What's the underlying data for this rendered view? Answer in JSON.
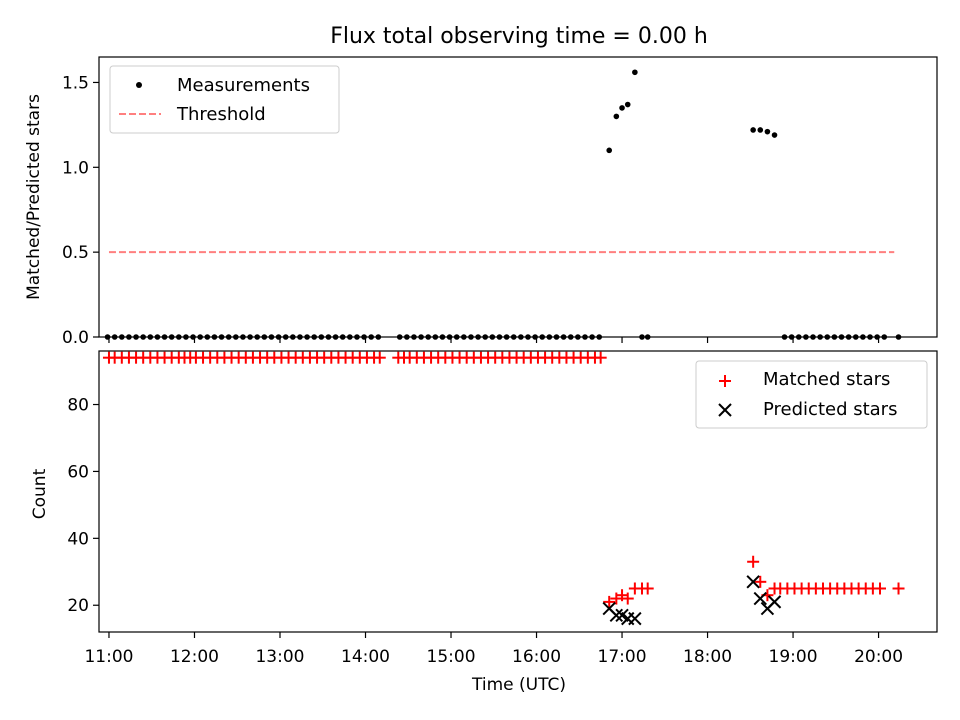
{
  "chart_data": [
    {
      "type": "scatter",
      "title": "Flux total observing time = 0.00 h",
      "xlabel": "",
      "ylabel": "Matched/Predicted stars",
      "xlim": [
        "10:53",
        "20:41"
      ],
      "ylim": [
        0,
        1.65
      ],
      "yticks": [
        0.0,
        0.5,
        1.0,
        1.5
      ],
      "ytick_labels": [
        "0.0",
        "0.5",
        "1.0",
        "1.5"
      ],
      "legend_position": "top-left",
      "series": [
        {
          "name": "Measurements",
          "marker": "dot",
          "color": "#000000",
          "points": [
            [
              "10:59",
              0
            ],
            [
              "11:04",
              0
            ],
            [
              "11:09",
              0
            ],
            [
              "11:14",
              0
            ],
            [
              "11:19",
              0
            ],
            [
              "11:24",
              0
            ],
            [
              "11:29",
              0
            ],
            [
              "11:34",
              0
            ],
            [
              "11:39",
              0
            ],
            [
              "11:44",
              0
            ],
            [
              "11:49",
              0
            ],
            [
              "11:54",
              0
            ],
            [
              "11:59",
              0
            ],
            [
              "12:04",
              0
            ],
            [
              "12:09",
              0
            ],
            [
              "12:14",
              0
            ],
            [
              "12:19",
              0
            ],
            [
              "12:24",
              0
            ],
            [
              "12:29",
              0
            ],
            [
              "12:34",
              0
            ],
            [
              "12:39",
              0
            ],
            [
              "12:44",
              0
            ],
            [
              "12:49",
              0
            ],
            [
              "12:54",
              0
            ],
            [
              "12:59",
              0
            ],
            [
              "13:04",
              0
            ],
            [
              "13:09",
              0
            ],
            [
              "13:14",
              0
            ],
            [
              "13:19",
              0
            ],
            [
              "13:24",
              0
            ],
            [
              "13:29",
              0
            ],
            [
              "13:34",
              0
            ],
            [
              "13:39",
              0
            ],
            [
              "13:44",
              0
            ],
            [
              "13:49",
              0
            ],
            [
              "13:54",
              0
            ],
            [
              "13:59",
              0
            ],
            [
              "14:04",
              0
            ],
            [
              "14:09",
              0
            ],
            [
              "14:24",
              0
            ],
            [
              "14:29",
              0
            ],
            [
              "14:34",
              0
            ],
            [
              "14:39",
              0
            ],
            [
              "14:44",
              0
            ],
            [
              "14:49",
              0
            ],
            [
              "14:54",
              0
            ],
            [
              "14:59",
              0
            ],
            [
              "15:04",
              0
            ],
            [
              "15:09",
              0
            ],
            [
              "15:14",
              0
            ],
            [
              "15:19",
              0
            ],
            [
              "15:24",
              0
            ],
            [
              "15:29",
              0
            ],
            [
              "15:34",
              0
            ],
            [
              "15:39",
              0
            ],
            [
              "15:44",
              0
            ],
            [
              "15:49",
              0
            ],
            [
              "15:54",
              0
            ],
            [
              "15:59",
              0
            ],
            [
              "16:04",
              0
            ],
            [
              "16:09",
              0
            ],
            [
              "16:14",
              0
            ],
            [
              "16:19",
              0
            ],
            [
              "16:24",
              0
            ],
            [
              "16:29",
              0
            ],
            [
              "16:34",
              0
            ],
            [
              "16:39",
              0
            ],
            [
              "16:44",
              0
            ],
            [
              "16:51",
              1.1
            ],
            [
              "16:56",
              1.3
            ],
            [
              "17:00",
              1.35
            ],
            [
              "17:04",
              1.37
            ],
            [
              "17:09",
              1.56
            ],
            [
              "17:14",
              0
            ],
            [
              "17:18",
              0
            ],
            [
              "18:32",
              1.22
            ],
            [
              "18:37",
              1.22
            ],
            [
              "18:42",
              1.21
            ],
            [
              "18:47",
              1.19
            ],
            [
              "18:54",
              0
            ],
            [
              "18:59",
              0
            ],
            [
              "19:04",
              0
            ],
            [
              "19:09",
              0
            ],
            [
              "19:14",
              0
            ],
            [
              "19:19",
              0
            ],
            [
              "19:24",
              0
            ],
            [
              "19:29",
              0
            ],
            [
              "19:34",
              0
            ],
            [
              "19:39",
              0
            ],
            [
              "19:44",
              0
            ],
            [
              "19:49",
              0
            ],
            [
              "19:54",
              0
            ],
            [
              "19:59",
              0
            ],
            [
              "20:04",
              0
            ],
            [
              "20:14",
              0
            ]
          ]
        },
        {
          "name": "Threshold",
          "marker": "dashed-line",
          "color": "#ff7f7f",
          "points": [
            [
              "11:00",
              0.5
            ],
            [
              "20:11",
              0.5
            ]
          ]
        }
      ]
    },
    {
      "type": "scatter",
      "title": "",
      "xlabel": "Time (UTC)",
      "ylabel": "Count",
      "xlim": [
        "10:53",
        "20:41"
      ],
      "ylim": [
        12,
        96
      ],
      "yticks": [
        20,
        40,
        60,
        80
      ],
      "ytick_labels": [
        "20",
        "40",
        "60",
        "80"
      ],
      "xticks": [
        "11:00",
        "12:00",
        "13:00",
        "14:00",
        "15:00",
        "16:00",
        "17:00",
        "18:00",
        "19:00",
        "20:00"
      ],
      "xtick_labels": [
        "11:00",
        "12:00",
        "13:00",
        "14:00",
        "15:00",
        "16:00",
        "17:00",
        "18:00",
        "19:00",
        "20:00"
      ],
      "legend_position": "top-right",
      "series": [
        {
          "name": "Matched stars",
          "marker": "plus",
          "color": "#ff0000",
          "points": [
            [
              "11:00",
              94
            ],
            [
              "11:04",
              94
            ],
            [
              "11:09",
              94
            ],
            [
              "11:14",
              94
            ],
            [
              "11:19",
              94
            ],
            [
              "11:24",
              94
            ],
            [
              "11:29",
              94
            ],
            [
              "11:34",
              94
            ],
            [
              "11:39",
              94
            ],
            [
              "11:44",
              94
            ],
            [
              "11:49",
              94
            ],
            [
              "11:53",
              94
            ],
            [
              "11:57",
              94
            ],
            [
              "12:01",
              94
            ],
            [
              "12:06",
              94
            ],
            [
              "12:11",
              94
            ],
            [
              "12:16",
              94
            ],
            [
              "12:21",
              94
            ],
            [
              "12:26",
              94
            ],
            [
              "12:31",
              94
            ],
            [
              "12:36",
              94
            ],
            [
              "12:41",
              94
            ],
            [
              "12:46",
              94
            ],
            [
              "12:51",
              94
            ],
            [
              "12:56",
              94
            ],
            [
              "13:01",
              94
            ],
            [
              "13:06",
              94
            ],
            [
              "13:11",
              94
            ],
            [
              "13:16",
              94
            ],
            [
              "13:21",
              94
            ],
            [
              "13:26",
              94
            ],
            [
              "13:31",
              94
            ],
            [
              "13:36",
              94
            ],
            [
              "13:41",
              94
            ],
            [
              "13:46",
              94
            ],
            [
              "13:51",
              94
            ],
            [
              "13:56",
              94
            ],
            [
              "14:01",
              94
            ],
            [
              "14:06",
              94
            ],
            [
              "14:10",
              94
            ],
            [
              "14:23",
              94
            ],
            [
              "14:27",
              94
            ],
            [
              "14:31",
              94
            ],
            [
              "14:36",
              94
            ],
            [
              "14:41",
              94
            ],
            [
              "14:46",
              94
            ],
            [
              "14:51",
              94
            ],
            [
              "14:56",
              94
            ],
            [
              "15:01",
              94
            ],
            [
              "15:06",
              94
            ],
            [
              "15:11",
              94
            ],
            [
              "15:16",
              94
            ],
            [
              "15:21",
              94
            ],
            [
              "15:26",
              94
            ],
            [
              "15:31",
              94
            ],
            [
              "15:36",
              94
            ],
            [
              "15:41",
              94
            ],
            [
              "15:46",
              94
            ],
            [
              "15:51",
              94
            ],
            [
              "15:56",
              94
            ],
            [
              "16:01",
              94
            ],
            [
              "16:06",
              94
            ],
            [
              "16:11",
              94
            ],
            [
              "16:16",
              94
            ],
            [
              "16:21",
              94
            ],
            [
              "16:26",
              94
            ],
            [
              "16:31",
              94
            ],
            [
              "16:36",
              94
            ],
            [
              "16:41",
              94
            ],
            [
              "16:45",
              94
            ],
            [
              "16:51",
              21
            ],
            [
              "16:56",
              22
            ],
            [
              "17:00",
              23
            ],
            [
              "17:04",
              22
            ],
            [
              "17:09",
              25
            ],
            [
              "17:14",
              25
            ],
            [
              "17:18",
              25
            ],
            [
              "18:32",
              33
            ],
            [
              "18:37",
              27
            ],
            [
              "18:42",
              23
            ],
            [
              "18:47",
              25
            ],
            [
              "18:51",
              25
            ],
            [
              "18:56",
              25
            ],
            [
              "19:01",
              25
            ],
            [
              "19:06",
              25
            ],
            [
              "19:11",
              25
            ],
            [
              "19:16",
              25
            ],
            [
              "19:21",
              25
            ],
            [
              "19:26",
              25
            ],
            [
              "19:31",
              25
            ],
            [
              "19:36",
              25
            ],
            [
              "19:41",
              25
            ],
            [
              "19:46",
              25
            ],
            [
              "19:51",
              25
            ],
            [
              "19:56",
              25
            ],
            [
              "20:01",
              25
            ],
            [
              "20:14",
              25
            ]
          ]
        },
        {
          "name": "Predicted stars",
          "marker": "cross",
          "color": "#000000",
          "points": [
            [
              "16:51",
              19
            ],
            [
              "16:56",
              17
            ],
            [
              "17:00",
              17
            ],
            [
              "17:04",
              16
            ],
            [
              "17:09",
              16
            ],
            [
              "18:32",
              27
            ],
            [
              "18:37",
              22
            ],
            [
              "18:42",
              19
            ],
            [
              "18:47",
              21
            ]
          ]
        }
      ]
    }
  ]
}
